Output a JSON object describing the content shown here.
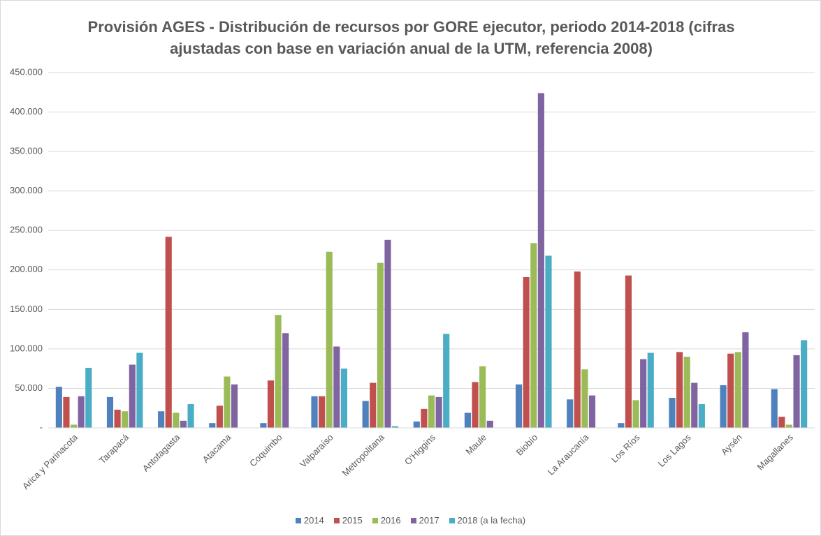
{
  "chart_data": {
    "type": "bar",
    "title": "Provisión AGES - Distribución de recursos por GORE ejecutor, periodo 2014-2018 (cifras ajustadas con base en variación anual de la UTM, referencia 2008)",
    "categories": [
      "Arica y Parinacota",
      "Tarapacá",
      "Antofagasta",
      "Atacama",
      "Coquimbo",
      "Valparaíso",
      "Metropolitana",
      "O'Higgins",
      "Maule",
      "Biobío",
      "La Araucanía",
      "Los Ríos",
      "Los Lagos",
      "Aysén",
      "Magallanes"
    ],
    "series": [
      {
        "name": "2014",
        "color": "#4f81bd",
        "values": [
          52000,
          39000,
          21000,
          6000,
          6000,
          40000,
          34000,
          8000,
          19000,
          55000,
          36000,
          6000,
          38000,
          54000,
          49000
        ]
      },
      {
        "name": "2015",
        "color": "#c0504d",
        "values": [
          39000,
          23000,
          242000,
          28000,
          60000,
          40000,
          57000,
          24000,
          58000,
          191000,
          198000,
          193000,
          96000,
          94000,
          14000
        ]
      },
      {
        "name": "2016",
        "color": "#9bbb59",
        "values": [
          4000,
          21000,
          19000,
          65000,
          143000,
          223000,
          209000,
          41000,
          78000,
          234000,
          74000,
          35000,
          90000,
          96000,
          4000
        ]
      },
      {
        "name": "2017",
        "color": "#8064a2",
        "values": [
          40000,
          80000,
          9000,
          55000,
          120000,
          103000,
          238000,
          39000,
          9000,
          424000,
          41000,
          87000,
          57000,
          121000,
          92000
        ]
      },
      {
        "name": "2018 (a la fecha)",
        "color": "#4bacc6",
        "values": [
          76000,
          95000,
          30000,
          0,
          0,
          75000,
          2000,
          119000,
          0,
          218000,
          0,
          95000,
          30000,
          0,
          111000
        ]
      }
    ],
    "ylim": [
      0,
      450000
    ],
    "yticks": [
      {
        "value": 0,
        "label": "-"
      },
      {
        "value": 50000,
        "label": "50.000"
      },
      {
        "value": 100000,
        "label": "100.000"
      },
      {
        "value": 150000,
        "label": "150.000"
      },
      {
        "value": 200000,
        "label": "200.000"
      },
      {
        "value": 250000,
        "label": "250.000"
      },
      {
        "value": 300000,
        "label": "300.000"
      },
      {
        "value": 350000,
        "label": "350.000"
      },
      {
        "value": 400000,
        "label": "400.000"
      },
      {
        "value": 450000,
        "label": "450.000"
      }
    ],
    "grid": true,
    "legend": "bottom"
  }
}
